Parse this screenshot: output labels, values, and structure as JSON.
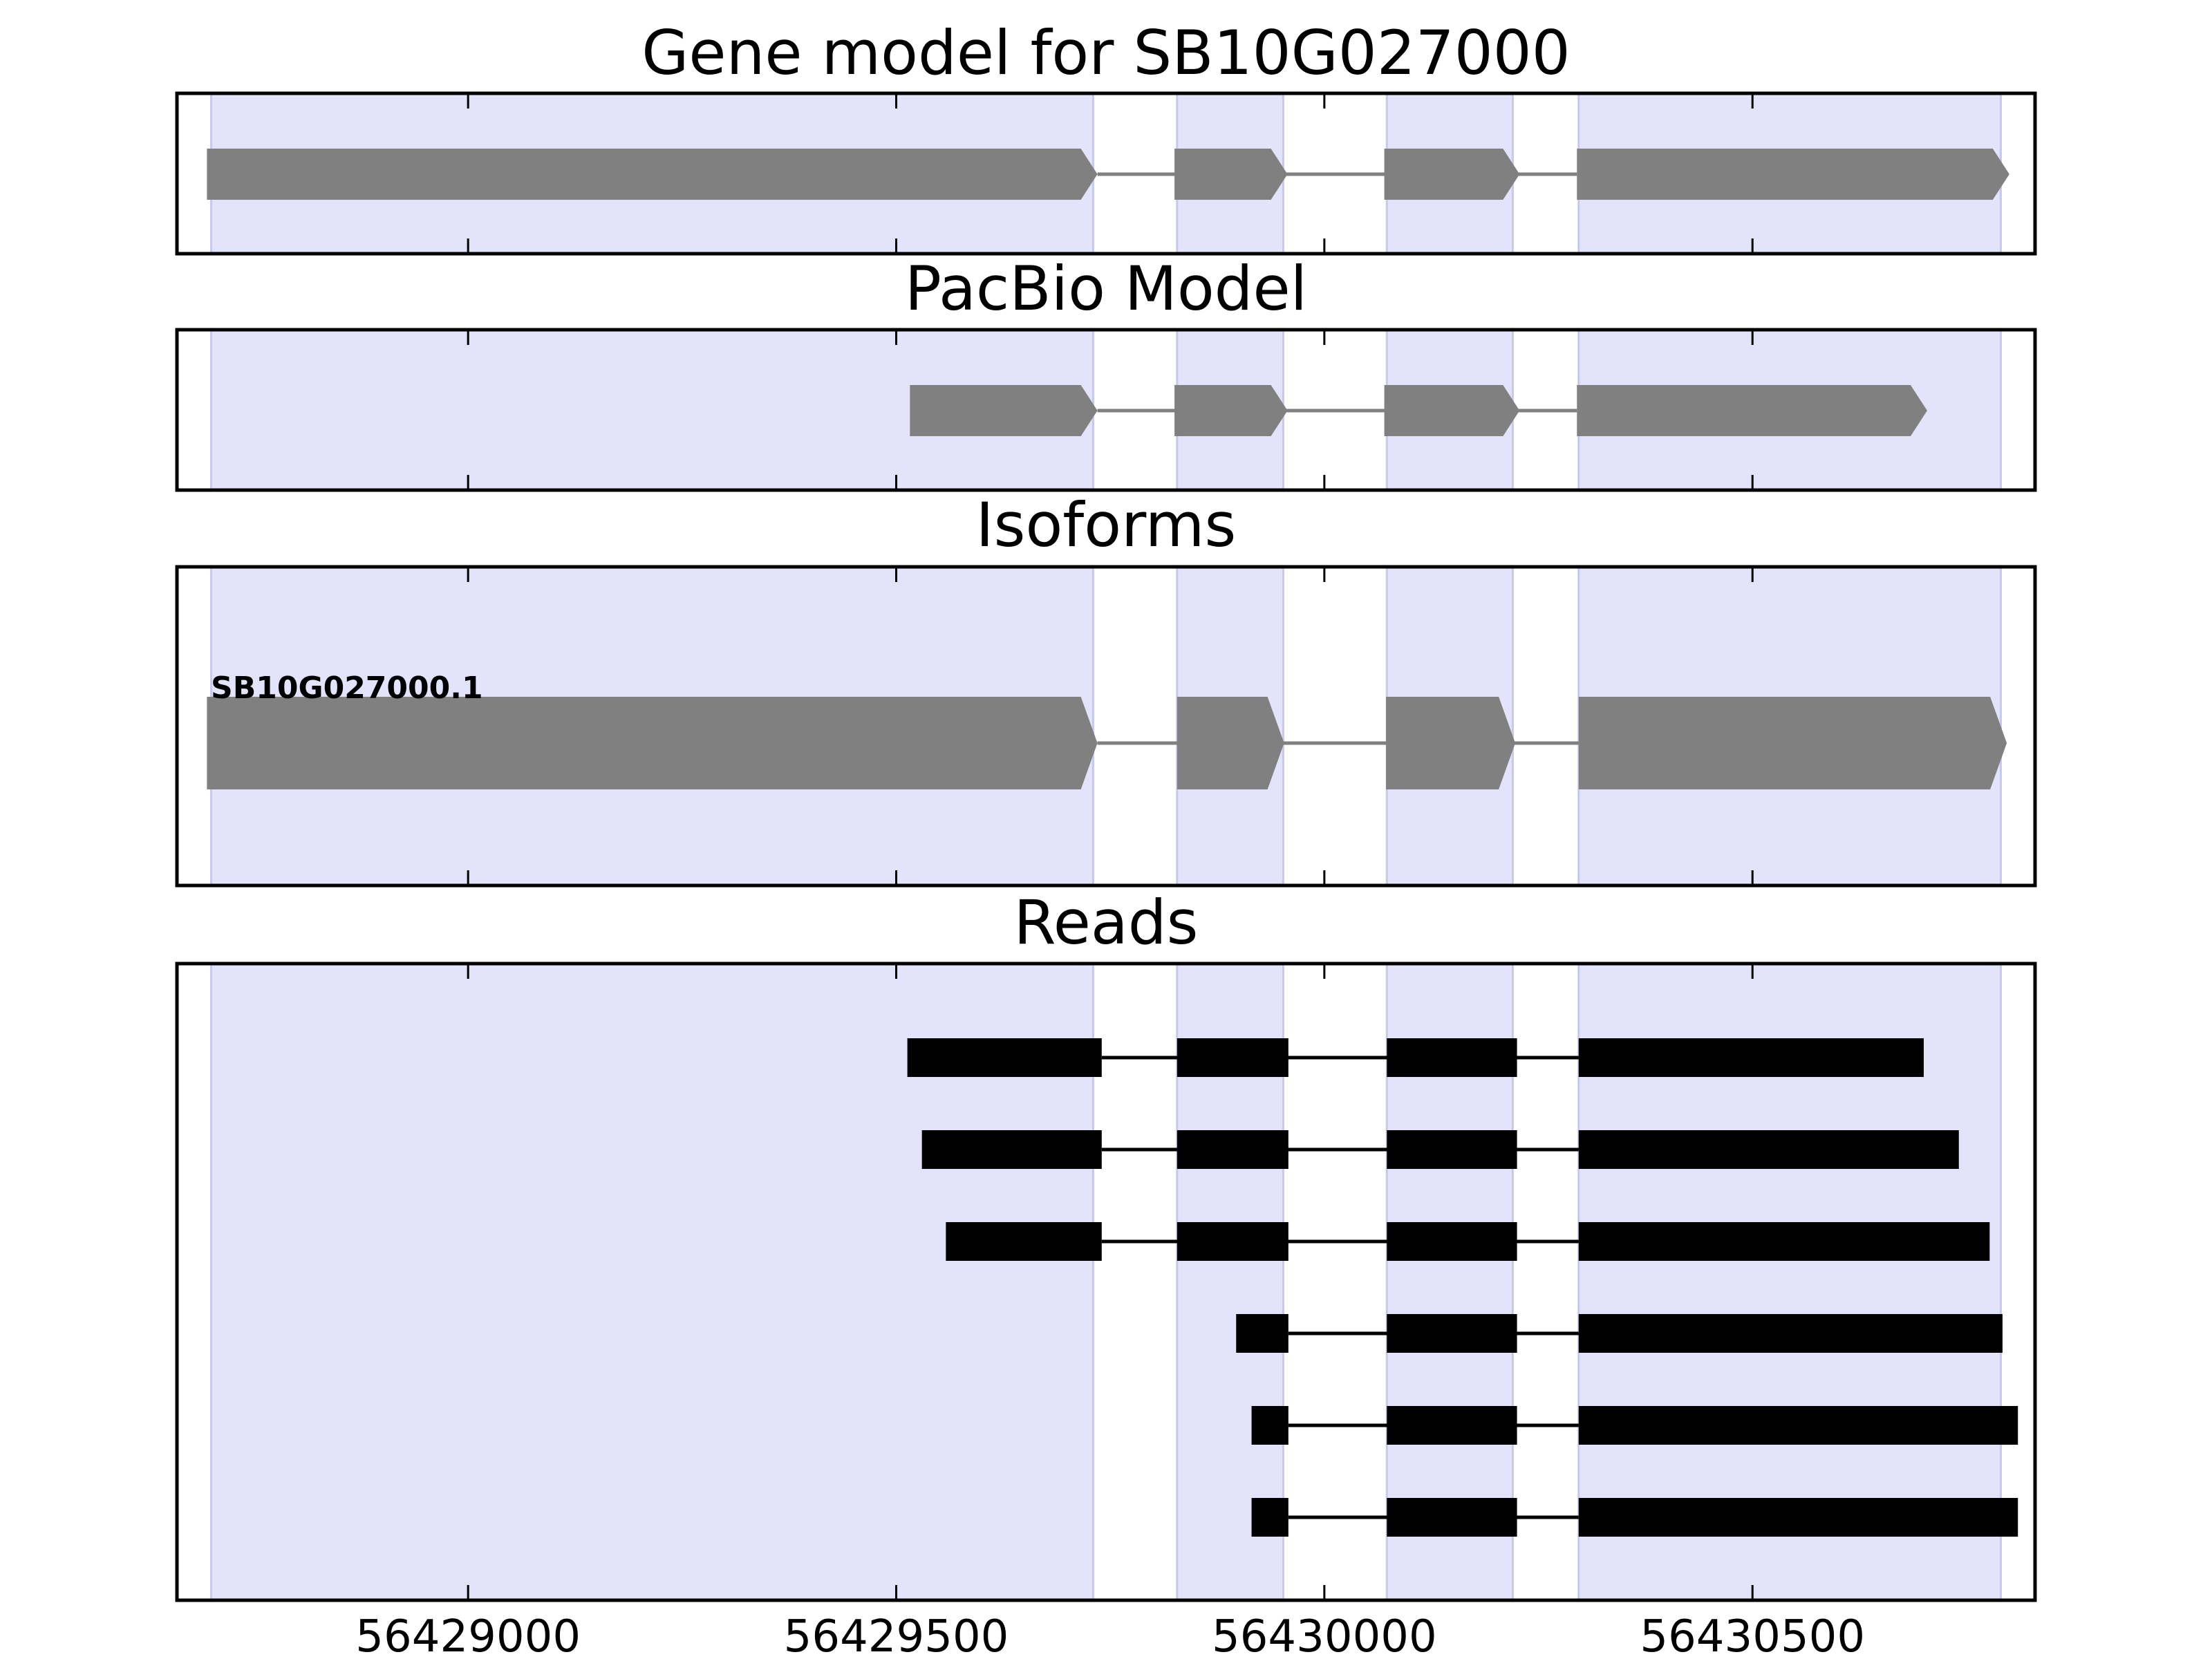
{
  "chart_data": {
    "type": "gene-structure",
    "x_range": [
      56428660,
      56430830
    ],
    "x_ticks": [
      56429000,
      56429500,
      56430000,
      56430500
    ],
    "x_tick_labels": [
      "56429000",
      "56429500",
      "56430000",
      "56430500"
    ],
    "exon_regions": [
      [
        56428700,
        56429730
      ],
      [
        56429828,
        56429952
      ],
      [
        56430073,
        56430220
      ],
      [
        56430297,
        56430790
      ]
    ],
    "colors": {
      "region_fill": "#e3e3fc",
      "region_edge": "#c8c8ee",
      "model_fill": "#808080",
      "read_fill": "#000000",
      "axis": "#000000"
    },
    "panels": [
      {
        "id": "gene-model",
        "title": "Gene model for SB10G027000",
        "kind": "model",
        "features": [
          {
            "label": "",
            "exons": [
              [
                56428695,
                56429735
              ],
              [
                56429825,
                56429957
              ],
              [
                56430070,
                56430228
              ],
              [
                56430295,
                56430800
              ]
            ]
          }
        ]
      },
      {
        "id": "pacbio-model",
        "title": "PacBio Model",
        "kind": "model",
        "features": [
          {
            "label": "",
            "exons": [
              [
                56429516,
                56429735
              ],
              [
                56429825,
                56429957
              ],
              [
                56430070,
                56430228
              ],
              [
                56430295,
                56430704
              ]
            ]
          }
        ]
      },
      {
        "id": "isoforms",
        "title": "Isoforms",
        "kind": "model",
        "features": [
          {
            "label": "SB10G027000.1",
            "exons": [
              [
                56428695,
                56429735
              ],
              [
                56429828,
                56429953
              ],
              [
                56430072,
                56430223
              ],
              [
                56430297,
                56430797
              ]
            ]
          }
        ]
      },
      {
        "id": "reads",
        "title": "Reads",
        "kind": "reads",
        "features": [
          {
            "label": "",
            "exons": [
              [
                56429513,
                56429740
              ],
              [
                56429828,
                56429958
              ],
              [
                56430073,
                56430225
              ],
              [
                56430297,
                56430700
              ]
            ]
          },
          {
            "label": "",
            "exons": [
              [
                56429530,
                56429740
              ],
              [
                56429828,
                56429958
              ],
              [
                56430073,
                56430225
              ],
              [
                56430297,
                56430741
              ]
            ]
          },
          {
            "label": "",
            "exons": [
              [
                56429558,
                56429740
              ],
              [
                56429828,
                56429958
              ],
              [
                56430073,
                56430225
              ],
              [
                56430297,
                56430777
              ]
            ]
          },
          {
            "label": "",
            "exons": [
              [
                56429897,
                56429958
              ],
              [
                56430073,
                56430225
              ],
              [
                56430297,
                56430792
              ]
            ]
          },
          {
            "label": "",
            "exons": [
              [
                56429915,
                56429958
              ],
              [
                56430073,
                56430225
              ],
              [
                56430297,
                56430810
              ]
            ]
          },
          {
            "label": "",
            "exons": [
              [
                56429915,
                56429958
              ],
              [
                56430073,
                56430225
              ],
              [
                56430297,
                56430810
              ]
            ]
          }
        ]
      }
    ]
  }
}
